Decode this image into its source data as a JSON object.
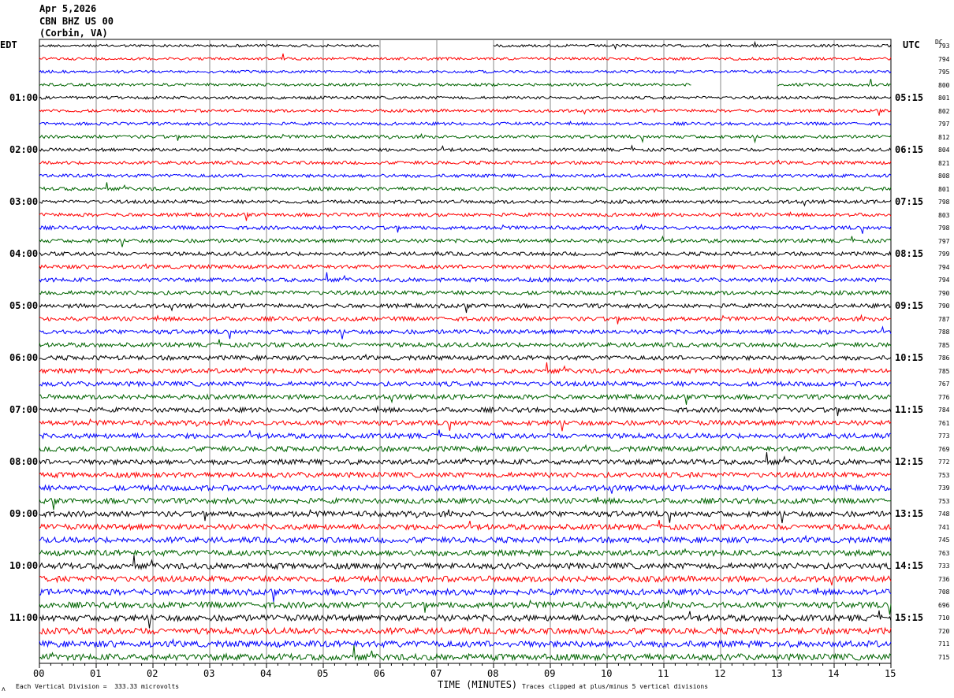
{
  "header": {
    "date": "Apr 5,2026",
    "station": "CBN BHZ US 00",
    "location": "(Corbin, VA)"
  },
  "left_tz": "EDT",
  "right_tz": "UTC",
  "dc_label": "DC",
  "footer": {
    "scale": "Each Vertical Division =  333.33 microvolts",
    "xlabel": "TIME (MINUTES)",
    "clip_note": "Traces clipped at plus/minus 5 vertical divisions",
    "corner_mark": "ʌ"
  },
  "chart_data": {
    "type": "line",
    "title": "CBN BHZ US 00 helicorder",
    "xlabel": "TIME (MINUTES)",
    "xlim": [
      0,
      15
    ],
    "x_ticks": [
      "00",
      "01",
      "02",
      "03",
      "04",
      "05",
      "06",
      "07",
      "08",
      "09",
      "10",
      "11",
      "12",
      "13",
      "14",
      "15"
    ],
    "trace_colors": [
      "#000000",
      "#ff0000",
      "#0000ff",
      "#006400"
    ],
    "left_hour_labels": [
      "01:00",
      "02:00",
      "03:00",
      "04:00",
      "05:00",
      "06:00",
      "07:00",
      "08:00",
      "09:00",
      "10:00",
      "11:00"
    ],
    "right_hour_labels": [
      "05:15",
      "06:15",
      "07:15",
      "08:15",
      "09:15",
      "10:15",
      "11:15",
      "12:15",
      "13:15",
      "14:15",
      "15:15"
    ],
    "dc_offsets": [
      793,
      794,
      795,
      800,
      801,
      802,
      797,
      812,
      804,
      821,
      808,
      801,
      798,
      803,
      798,
      797,
      799,
      794,
      794,
      790,
      790,
      787,
      788,
      785,
      786,
      785,
      767,
      776,
      784,
      761,
      773,
      769,
      772,
      753,
      739,
      753,
      748,
      741,
      745,
      763,
      733,
      736,
      708,
      696,
      710,
      720,
      711,
      715
    ],
    "gaps": [
      {
        "trace": 0,
        "from_min": 6,
        "to_min": 8
      },
      {
        "trace": 3,
        "from_min": 11.5,
        "to_min": 13
      }
    ]
  }
}
